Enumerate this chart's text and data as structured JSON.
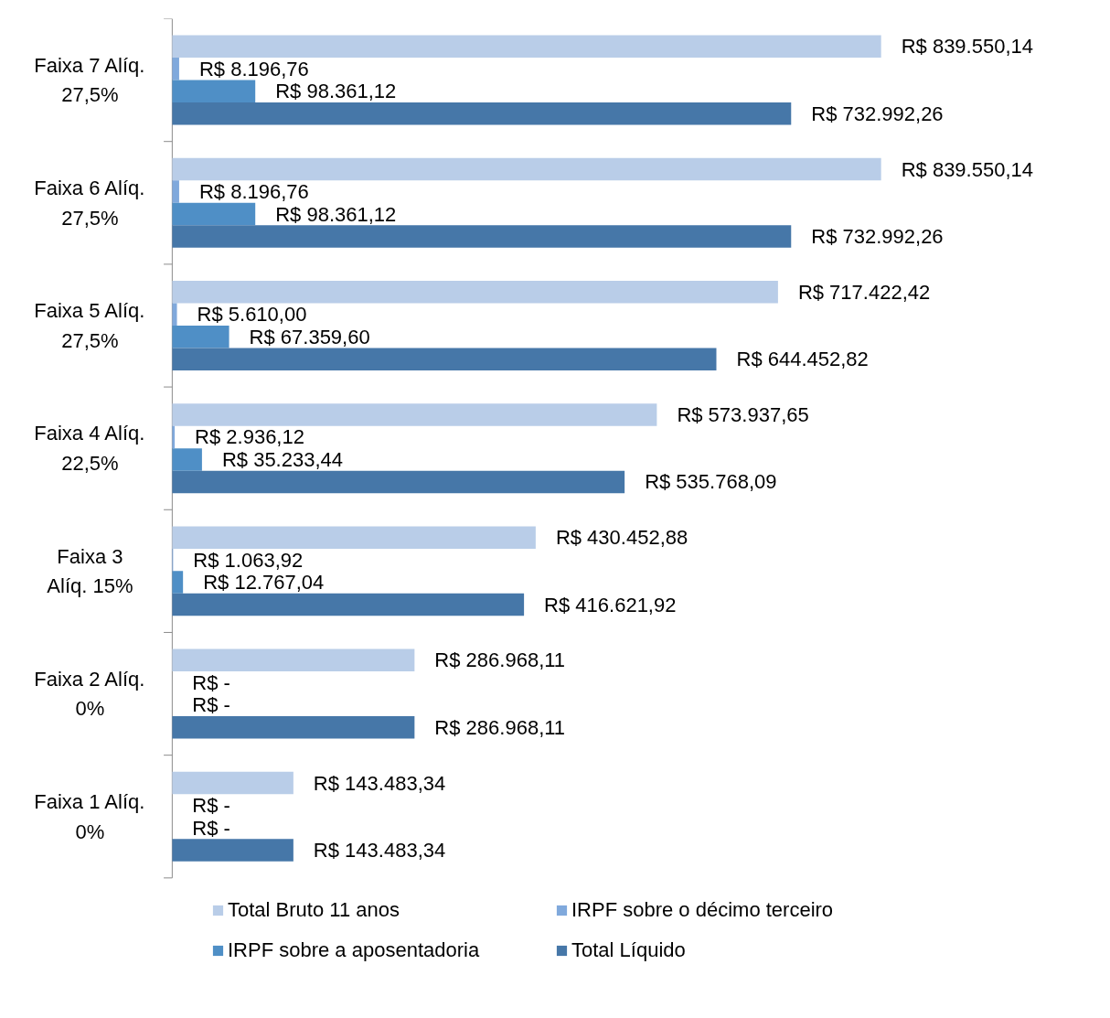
{
  "chart_data": {
    "type": "bar",
    "orientation": "horizontal",
    "categories": [
      "Faixa 7 Alíq.\n27,5%",
      "Faixa 6 Alíq.\n27,5%",
      "Faixa 5 Alíq.\n27,5%",
      "Faixa 4 Alíq.\n22,5%",
      "Faixa 3\nAlíq. 15%",
      "Faixa 2 Alíq.\n0%",
      "Faixa 1 Alíq.\n0%"
    ],
    "series": [
      {
        "name": "Total Bruto 11 anos",
        "color": "#b9cde8",
        "values": [
          839550.14,
          839550.14,
          717422.42,
          573937.65,
          430452.88,
          286968.11,
          143483.34
        ],
        "value_labels": [
          "R$ 839.550,14",
          "R$ 839.550,14",
          "R$ 717.422,42",
          "R$ 573.937,65",
          "R$ 430.452,88",
          "R$ 286.968,11",
          "R$ 143.483,34"
        ]
      },
      {
        "name": "IRPF sobre o décimo terceiro",
        "color": "#80a9dc",
        "values": [
          8196.76,
          8196.76,
          5610.0,
          2936.12,
          1063.92,
          0,
          0
        ],
        "value_labels": [
          "R$ 8.196,76",
          "R$ 8.196,76",
          "R$ 5.610,00",
          "R$ 2.936,12",
          "R$ 1.063,92",
          "R$ -",
          "R$ -"
        ]
      },
      {
        "name": "IRPF sobre a aposentadoria",
        "color": "#4f8fc6",
        "values": [
          98361.12,
          98361.12,
          67359.6,
          35233.44,
          12767.04,
          0,
          0
        ],
        "value_labels": [
          "R$ 98.361,12",
          "R$ 98.361,12",
          "R$ 67.359,60",
          "R$ 35.233,44",
          "R$ 12.767,04",
          "R$ -",
          "R$ -"
        ]
      },
      {
        "name": "Total Líquido",
        "color": "#4677a8",
        "values": [
          732992.26,
          732992.26,
          644452.82,
          535768.09,
          416621.92,
          286968.11,
          143483.34
        ],
        "value_labels": [
          "R$ 732.992,26",
          "R$ 732.992,26",
          "R$ 644.452,82",
          "R$ 535.768,09",
          "R$ 416.621,92",
          "R$ 286.968,11",
          "R$ 143.483,34"
        ]
      }
    ],
    "legend": "bottom",
    "grid": false
  }
}
